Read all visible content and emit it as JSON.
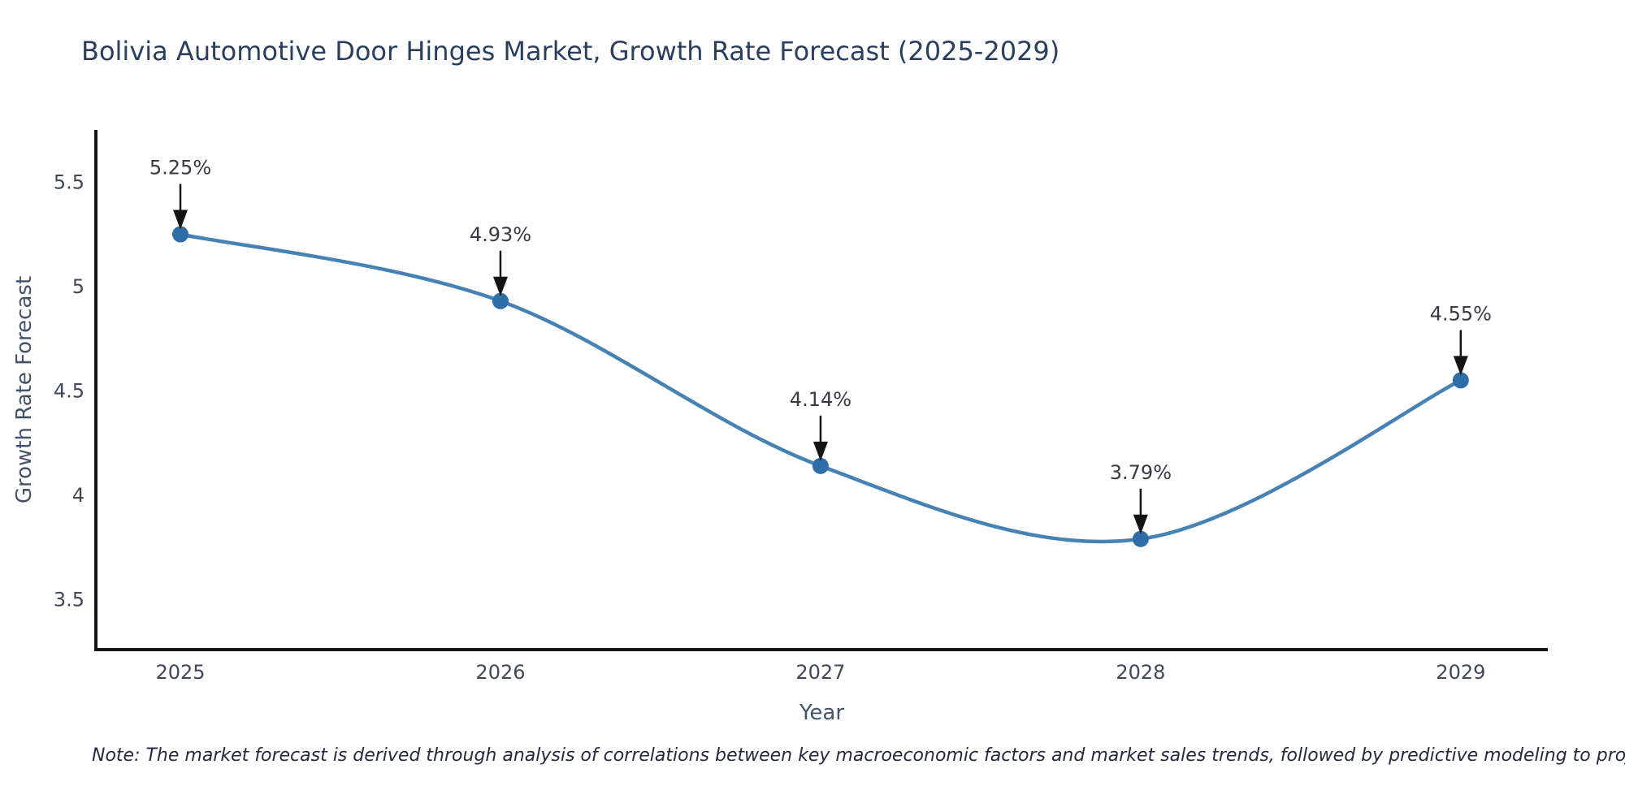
{
  "title": {
    "text": "Bolivia Automotive Door Hinges Market, Growth Rate Forecast (2025-2029)",
    "color": "#2a3f5f"
  },
  "note": {
    "text": "Note: The market forecast is derived through analysis of correlations between key macroeconomic factors and market sales trends, followed by predictive modeling to project future sales"
  },
  "chart_data": {
    "type": "line",
    "line_shape": "spline",
    "title": "Bolivia Automotive Door Hinges Market, Growth Rate Forecast (2025-2029)",
    "x": [
      2025,
      2026,
      2027,
      2028,
      2029
    ],
    "series": [
      {
        "name": "Growth Rate Forecast",
        "values": [
          5.25,
          4.93,
          4.14,
          3.79,
          4.55
        ]
      }
    ],
    "point_labels": [
      "5.25%",
      "4.93%",
      "4.14%",
      "3.79%",
      "4.55%"
    ],
    "xlabel": "Year",
    "ylabel": "Growth Rate Forecast",
    "xticks": [
      "2025",
      "2026",
      "2027",
      "2028",
      "2029"
    ],
    "yticks": [
      "3.5",
      "4",
      "4.5",
      "5",
      "5.5"
    ],
    "ytick_values": [
      3.5,
      4,
      4.5,
      5,
      5.5
    ],
    "xlim": [
      2024.736,
      2029.272
    ],
    "ylim": [
      3.26,
      5.75
    ],
    "grid": false,
    "legend_position": "none",
    "annotations_have_arrows": true,
    "colors": {
      "line": "#4682b4",
      "marker": "#2f6da9",
      "axis_line": "#161616",
      "tick_text": "#42465a",
      "axis_title_text": "#42526b",
      "annotation_text": "#383a42",
      "arrow": "#141414"
    }
  }
}
